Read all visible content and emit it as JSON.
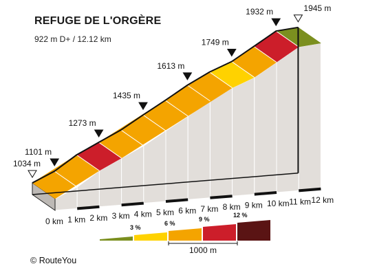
{
  "header": {
    "title": "REFUGE DE L'ORGÈRE",
    "subtitle": "922 m D+ / 12.12 km"
  },
  "chart_data": {
    "type": "area",
    "title": "REFUGE DE L'ORGÈRE",
    "subtitle": "922 m D+ / 12.12 km",
    "x_unit": "km",
    "y_unit": "m",
    "km_labels": [
      "0 km",
      "1 km",
      "2 km",
      "3 km",
      "4 km",
      "5 km",
      "6 km",
      "7 km",
      "8 km",
      "9 km",
      "10 km",
      "11 km",
      "12 km"
    ],
    "profile": [
      {
        "km": 0,
        "elev": 1034
      },
      {
        "km": 1,
        "elev": 1101
      },
      {
        "km": 2,
        "elev": 1200
      },
      {
        "km": 3,
        "elev": 1273
      },
      {
        "km": 4,
        "elev": 1345
      },
      {
        "km": 5,
        "elev": 1435
      },
      {
        "km": 6,
        "elev": 1522
      },
      {
        "km": 7,
        "elev": 1613
      },
      {
        "km": 8,
        "elev": 1690
      },
      {
        "km": 9,
        "elev": 1749
      },
      {
        "km": 10,
        "elev": 1840
      },
      {
        "km": 11,
        "elev": 1932
      },
      {
        "km": 12,
        "elev": 1945
      }
    ],
    "segments": [
      {
        "from_km": 0,
        "to_km": 2,
        "grade": "6-9%"
      },
      {
        "from_km": 2,
        "to_km": 3,
        "grade": "9-12%"
      },
      {
        "from_km": 3,
        "to_km": 8,
        "grade": "6-9%"
      },
      {
        "from_km": 8,
        "to_km": 9,
        "grade": "3-6%"
      },
      {
        "from_km": 9,
        "to_km": 10,
        "grade": "6-9%"
      },
      {
        "from_km": 10,
        "to_km": 11,
        "grade": "9-12%"
      },
      {
        "from_km": 11,
        "to_km": 12,
        "grade": "0-3%"
      }
    ],
    "markers": [
      {
        "km": 0,
        "label": "1034 m",
        "kind": "start"
      },
      {
        "km": 1,
        "label": "1101 m",
        "kind": "point"
      },
      {
        "km": 3,
        "label": "1273 m",
        "kind": "point"
      },
      {
        "km": 5,
        "label": "1435 m",
        "kind": "point"
      },
      {
        "km": 7,
        "label": "1613 m",
        "kind": "point"
      },
      {
        "km": 9,
        "label": "1749 m",
        "kind": "point"
      },
      {
        "km": 11,
        "label": "1932 m",
        "kind": "point"
      },
      {
        "km": 12,
        "label": "1945 m",
        "kind": "end"
      }
    ],
    "legend": {
      "position": "bottom-right",
      "entries": [
        {
          "label": "",
          "color": "#7b8f1f"
        },
        {
          "label": "3 %",
          "color": "#ffd200"
        },
        {
          "label": "6 %",
          "color": "#f4a400"
        },
        {
          "label": "9 %",
          "color": "#cc1e2a"
        },
        {
          "label": "12 %",
          "color": "#5a1414"
        }
      ],
      "scale_label": "1000 m"
    },
    "colors": {
      "0-3%": "#7b8f1f",
      "3-6%": "#ffd200",
      "6-9%": "#f4a400",
      "9-12%": "#cc1e2a",
      "12%+": "#5a1414"
    }
  },
  "footer": {
    "copyright_symbol": "©",
    "brand": "RouteYou"
  }
}
